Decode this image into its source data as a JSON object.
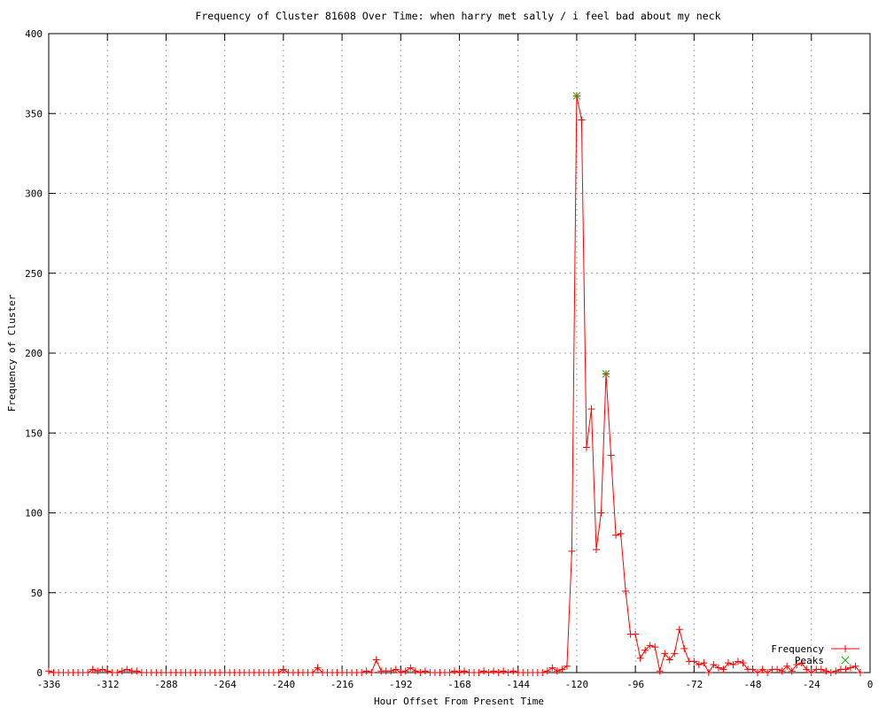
{
  "chart_data": {
    "type": "line",
    "title": "Frequency of Cluster 81608 Over Time: when harry met sally / i feel bad about my neck",
    "xlabel": "Hour Offset From Present Time",
    "ylabel": "Frequency of Cluster",
    "xlim": [
      -336,
      0
    ],
    "ylim": [
      0,
      400
    ],
    "xticks": [
      -336,
      -312,
      -288,
      -264,
      -240,
      -216,
      -192,
      -168,
      -144,
      -120,
      -96,
      -72,
      -48,
      -24,
      0
    ],
    "yticks": [
      0,
      50,
      100,
      150,
      200,
      250,
      300,
      350,
      400
    ],
    "grid": true,
    "legend_position": "bottom-right",
    "series": [
      {
        "name": "Frequency",
        "color": "#ff0000",
        "marker": "plus",
        "x": [
          -336,
          -334,
          -332,
          -330,
          -328,
          -326,
          -324,
          -322,
          -320,
          -318,
          -316,
          -314,
          -312,
          -310,
          -308,
          -306,
          -304,
          -302,
          -300,
          -298,
          -296,
          -294,
          -292,
          -290,
          -288,
          -286,
          -284,
          -282,
          -280,
          -278,
          -276,
          -274,
          -272,
          -270,
          -268,
          -266,
          -264,
          -262,
          -260,
          -258,
          -256,
          -254,
          -252,
          -250,
          -248,
          -246,
          -244,
          -242,
          -240,
          -238,
          -236,
          -234,
          -232,
          -230,
          -228,
          -226,
          -224,
          -222,
          -220,
          -218,
          -216,
          -214,
          -212,
          -210,
          -208,
          -206,
          -204,
          -202,
          -200,
          -198,
          -196,
          -194,
          -192,
          -190,
          -188,
          -186,
          -184,
          -182,
          -180,
          -178,
          -176,
          -174,
          -172,
          -170,
          -168,
          -166,
          -164,
          -162,
          -160,
          -158,
          -156,
          -154,
          -152,
          -150,
          -148,
          -146,
          -144,
          -142,
          -140,
          -138,
          -136,
          -134,
          -132,
          -130,
          -128,
          -126,
          -124,
          -122,
          -120,
          -118,
          -116,
          -114,
          -112,
          -110,
          -108,
          -106,
          -104,
          -102,
          -100,
          -98,
          -96,
          -94,
          -92,
          -90,
          -88,
          -86,
          -84,
          -82,
          -80,
          -78,
          -76,
          -74,
          -72,
          -70,
          -68,
          -66,
          -64,
          -62,
          -60,
          -58,
          -56,
          -54,
          -52,
          -50,
          -48,
          -46,
          -44,
          -42,
          -40,
          -38,
          -36,
          -34,
          -32,
          -30,
          -28,
          -26,
          -24,
          -22,
          -20,
          -18,
          -16,
          -14,
          -12,
          -10,
          -8,
          -6,
          -4
        ],
        "values": [
          1,
          0,
          0,
          0,
          0,
          0,
          0,
          0,
          0,
          2,
          1,
          2,
          1,
          0,
          0,
          1,
          2,
          1,
          1,
          0,
          0,
          0,
          0,
          0,
          0,
          0,
          0,
          0,
          0,
          0,
          0,
          0,
          0,
          0,
          0,
          0,
          0,
          0,
          0,
          0,
          0,
          0,
          0,
          0,
          0,
          0,
          0,
          0,
          2,
          0,
          0,
          0,
          0,
          0,
          0,
          3,
          0,
          0,
          0,
          0,
          0,
          0,
          0,
          0,
          0,
          1,
          0,
          8,
          1,
          1,
          1,
          2,
          0,
          1,
          3,
          1,
          0,
          1,
          0,
          0,
          0,
          0,
          0,
          1,
          0,
          1,
          0,
          0,
          0,
          1,
          0,
          1,
          0,
          1,
          0,
          1,
          0,
          0,
          0,
          0,
          0,
          0,
          1,
          3,
          1,
          2,
          4,
          76,
          361,
          346,
          141,
          165,
          77,
          100,
          187,
          136,
          86,
          87,
          51,
          24,
          24,
          9,
          14,
          17,
          16,
          1,
          12,
          8,
          12,
          27,
          15,
          7,
          7,
          5,
          6,
          0,
          5,
          3,
          2,
          6,
          5,
          7,
          6,
          2,
          2,
          0,
          2,
          0,
          2,
          2,
          1,
          4,
          1,
          5,
          6,
          2,
          0,
          2,
          2,
          1,
          0,
          1,
          2,
          2,
          3,
          4,
          0
        ]
      },
      {
        "name": "Peaks",
        "color": "#00c000",
        "marker": "x",
        "x": [
          -120,
          -108
        ],
        "values": [
          361,
          187
        ]
      }
    ]
  }
}
